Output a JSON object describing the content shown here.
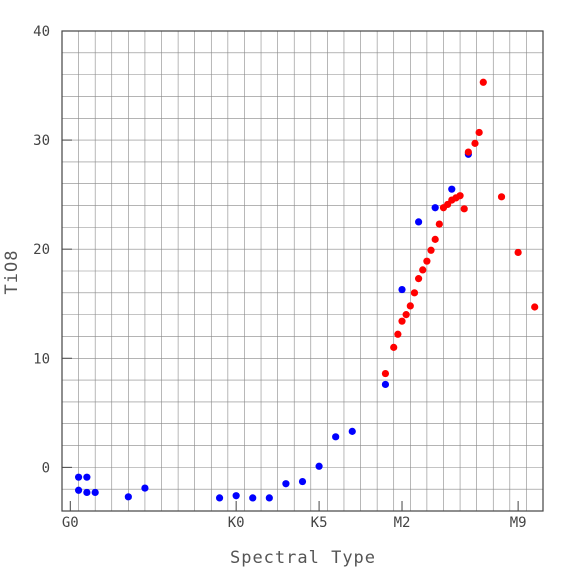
{
  "chart_data": {
    "type": "scatter",
    "xlabel": "Spectral Type",
    "ylabel": "TiO8",
    "xlim": [
      -1,
      57
    ],
    "ylim": [
      -4,
      40
    ],
    "x_ticks": [
      {
        "value": 0,
        "label": "G0"
      },
      {
        "value": 20,
        "label": "K0"
      },
      {
        "value": 30,
        "label": "K5"
      },
      {
        "value": 40,
        "label": "M2"
      },
      {
        "value": 54,
        "label": "M9"
      }
    ],
    "y_ticks": [
      0,
      10,
      20,
      30,
      40
    ],
    "grid": true,
    "colors": {
      "blue": "#0000ff",
      "red": "#ff0000",
      "grid": "#888888",
      "axis": "#444444"
    },
    "series": [
      {
        "color": "blue",
        "points": [
          {
            "x": 1,
            "y": -0.9
          },
          {
            "x": 1,
            "y": -2.1
          },
          {
            "x": 2,
            "y": -0.9
          },
          {
            "x": 2,
            "y": -2.3
          },
          {
            "x": 3,
            "y": -2.3
          },
          {
            "x": 7,
            "y": -2.7
          },
          {
            "x": 9,
            "y": -1.9
          },
          {
            "x": 18,
            "y": -2.8
          },
          {
            "x": 20,
            "y": -2.6
          },
          {
            "x": 22,
            "y": -2.8
          },
          {
            "x": 24,
            "y": -2.8
          },
          {
            "x": 26,
            "y": -1.5
          },
          {
            "x": 28,
            "y": -1.3
          },
          {
            "x": 30,
            "y": 0.1
          },
          {
            "x": 32,
            "y": 2.8
          },
          {
            "x": 34,
            "y": 3.3
          },
          {
            "x": 38,
            "y": 7.6
          },
          {
            "x": 40,
            "y": 16.3
          },
          {
            "x": 42,
            "y": 22.5
          },
          {
            "x": 44,
            "y": 23.8
          },
          {
            "x": 46,
            "y": 25.5
          },
          {
            "x": 48,
            "y": 28.7
          }
        ]
      },
      {
        "color": "red",
        "points": [
          {
            "x": 38,
            "y": 8.6
          },
          {
            "x": 39,
            "y": 11.0
          },
          {
            "x": 39.5,
            "y": 12.2
          },
          {
            "x": 40,
            "y": 13.4
          },
          {
            "x": 40.5,
            "y": 14.0
          },
          {
            "x": 41,
            "y": 14.8
          },
          {
            "x": 41.5,
            "y": 16.0
          },
          {
            "x": 42,
            "y": 17.3
          },
          {
            "x": 42.5,
            "y": 18.1
          },
          {
            "x": 43,
            "y": 18.9
          },
          {
            "x": 43.5,
            "y": 19.9
          },
          {
            "x": 44,
            "y": 20.9
          },
          {
            "x": 44.5,
            "y": 22.3
          },
          {
            "x": 45,
            "y": 23.8
          },
          {
            "x": 45.5,
            "y": 24.1
          },
          {
            "x": 46,
            "y": 24.5
          },
          {
            "x": 46.5,
            "y": 24.7
          },
          {
            "x": 47,
            "y": 24.9
          },
          {
            "x": 47.5,
            "y": 23.7
          },
          {
            "x": 48,
            "y": 28.9
          },
          {
            "x": 48.8,
            "y": 29.7
          },
          {
            "x": 49.3,
            "y": 30.7
          },
          {
            "x": 49.8,
            "y": 35.3
          },
          {
            "x": 52,
            "y": 24.8
          },
          {
            "x": 54,
            "y": 19.7
          },
          {
            "x": 56,
            "y": 14.7
          }
        ]
      }
    ]
  }
}
